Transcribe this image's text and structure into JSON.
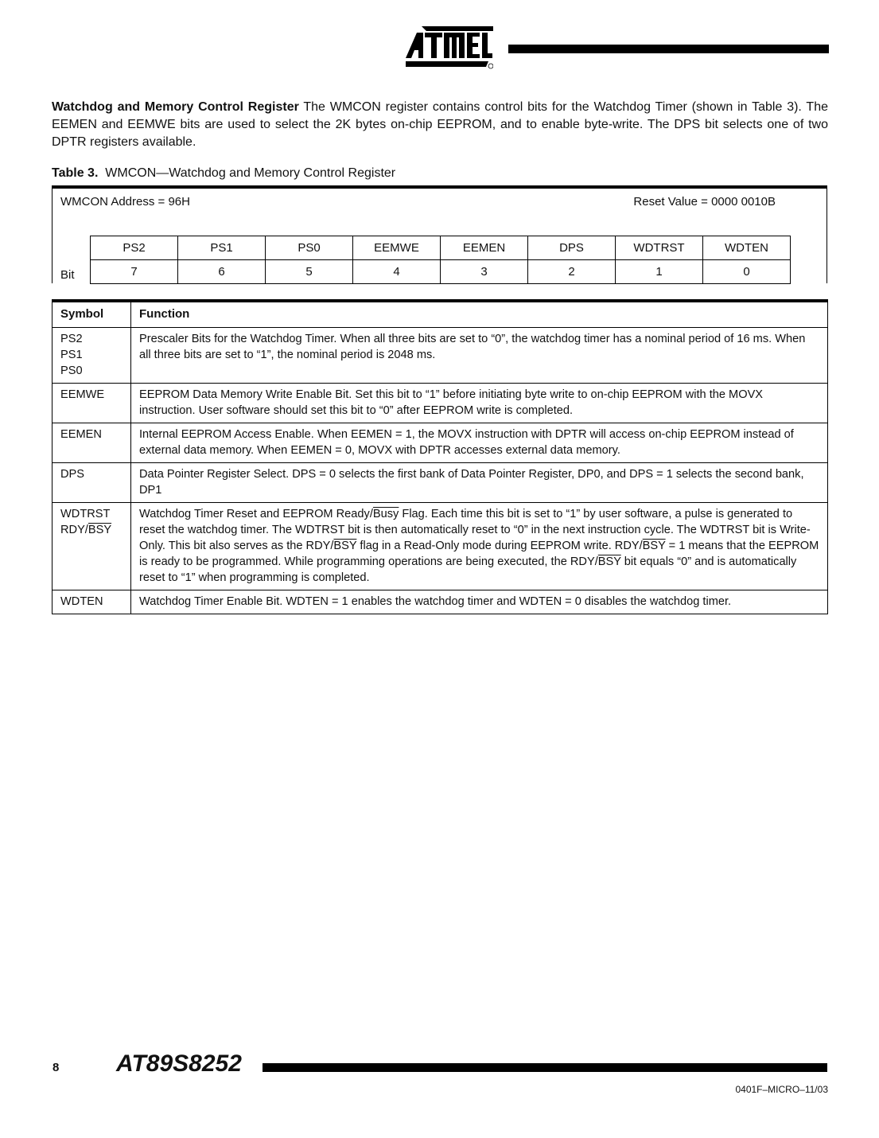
{
  "header": {
    "logo_text": "ATMEL"
  },
  "intro": {
    "heading": "Watchdog and Memory Control Register",
    "body": " The WMCON register contains control bits for the Watchdog Timer (shown in Table 3). The EEMEN and EEMWE bits are used to select the 2K bytes on-chip EEPROM, and to enable byte-write. The DPS bit selects one of two DPTR registers available."
  },
  "table_caption": {
    "label": "Table 3.",
    "title": "WMCON—Watchdog and Memory Control Register"
  },
  "register": {
    "address": "WMCON Address = 96H",
    "reset_value": "Reset Value = 0000 0010B",
    "bit_label": "Bit",
    "names": [
      "PS2",
      "PS1",
      "PS0",
      "EEMWE",
      "EEMEN",
      "DPS",
      "WDTRST",
      "WDTEN"
    ],
    "numbers": [
      "7",
      "6",
      "5",
      "4",
      "3",
      "2",
      "1",
      "0"
    ]
  },
  "functions": {
    "headers": [
      "Symbol",
      "Function"
    ],
    "rows": [
      {
        "symbol": [
          "PS2",
          "PS1",
          "PS0"
        ],
        "text": "Prescaler Bits for the Watchdog Timer. When all three bits are set to “0”, the watchdog timer has a nominal period of 16 ms. When all three bits are set to “1”, the nominal period is 2048 ms."
      },
      {
        "symbol": [
          "EEMWE"
        ],
        "text": "EEPROM Data Memory Write Enable Bit. Set this bit to “1” before initiating byte write to on-chip EEPROM with the MOVX instruction. User software should set this bit to “0” after EEPROM write is completed."
      },
      {
        "symbol": [
          "EEMEN"
        ],
        "text": "Internal EEPROM Access Enable. When EEMEN = 1, the MOVX instruction with DPTR will access on-chip EEPROM instead of external data memory. When EEMEN = 0, MOVX with DPTR accesses external data memory."
      },
      {
        "symbol": [
          "DPS"
        ],
        "text": "Data Pointer Register Select. DPS = 0 selects the first bank of Data Pointer Register, DP0, and DPS = 1 selects the second bank, DP1"
      },
      {
        "symbol": [
          "WDTRST",
          "RDY/",
          "BSY"
        ],
        "segments": [
          "Watchdog Timer Reset and EEPROM Ready/",
          "Busy",
          " Flag. Each time this bit is set to “1” by user software, a pulse is generated to reset the watchdog timer. The WDTRST bit is then automatically reset to “0” in the next instruction cycle. The WDTRST bit is Write-Only. This bit also serves as the RDY/",
          "BSY",
          " flag in a Read-Only mode during EEPROM write. RDY/",
          "BSY",
          " = 1 means that the EEPROM is ready to be programmed. While programming operations are being executed, the RDY/",
          "BSY",
          " bit equals “0” and is automatically reset to “1” when programming is completed."
        ]
      },
      {
        "symbol": [
          "WDTEN"
        ],
        "text": "Watchdog Timer Enable Bit. WDTEN = 1 enables the watchdog timer and WDTEN = 0 disables the watchdog timer."
      }
    ]
  },
  "footer": {
    "page_number": "8",
    "product": "AT89S8252",
    "doc_id": "0401F–MICRO–11/03"
  }
}
